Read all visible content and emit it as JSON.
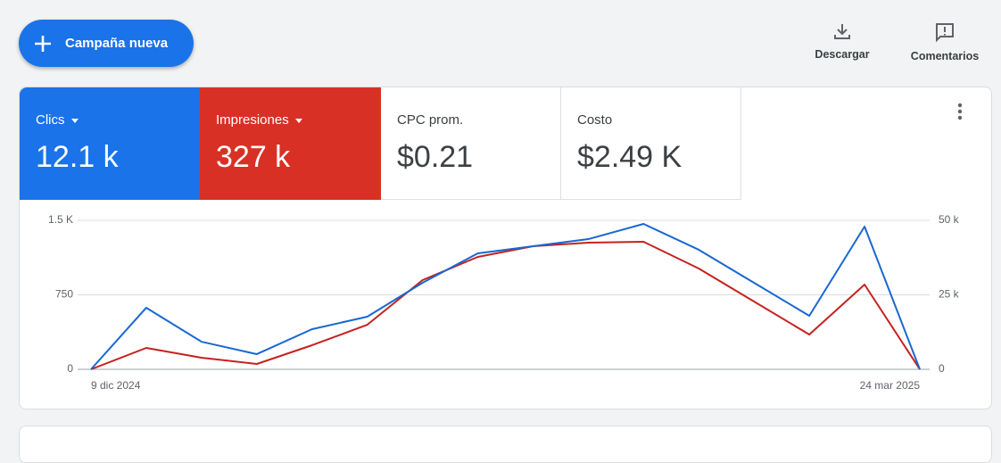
{
  "toolbar": {
    "new_campaign": "Campaña nueva",
    "download": "Descargar",
    "feedback": "Comentarios"
  },
  "metrics": [
    {
      "value": "12.1 k"
    },
    {
      "value": "327 k"
    },
    {
      "label": "CPC prom.",
      "value": "$0.21"
    },
    {
      "label": "Costo",
      "value": "$2.49 K"
    }
  ],
  "chart_data": {
    "type": "line",
    "categories": [
      "9 dic 2024",
      null,
      null,
      null,
      null,
      null,
      null,
      null,
      null,
      null,
      null,
      null,
      null,
      null,
      null,
      "24 mar 2025"
    ],
    "series": [
      {
        "name": "Clics",
        "color": "#1a73e8",
        "line_color": "#1967d2",
        "values": [
          0,
          620,
          278,
          153,
          404,
          530,
          871,
          1168,
          1240,
          1311,
          1464,
          1204,
          871,
          539,
          1437,
          0
        ]
      },
      {
        "name": "Impresiones",
        "color": "#d93025",
        "line_color": "#c5221f",
        "axis": "y2",
        "values": [
          0,
          7186,
          3892,
          1796,
          8084,
          14970,
          29940,
          37725,
          41317,
          42515,
          42814,
          33832,
          22754,
          11677,
          28443,
          0
        ]
      }
    ],
    "ylim": [
      0,
      1500
    ],
    "yticks": [
      0,
      750,
      {
        "value": 1500,
        "label": "1.5 K"
      }
    ],
    "y2lim": [
      0,
      50000
    ],
    "y2ticks": [
      0,
      {
        "value": 25000,
        "label": "25 k"
      },
      {
        "value": 50000,
        "label": "50 k"
      }
    ],
    "grid": true
  }
}
